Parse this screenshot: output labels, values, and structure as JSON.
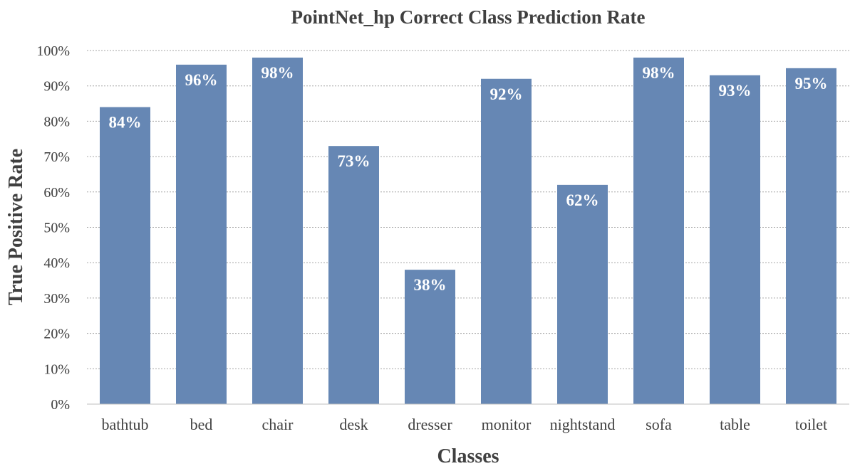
{
  "chart_data": {
    "type": "bar",
    "title": "PointNet_hp Correct Class Prediction Rate",
    "xlabel": "Classes",
    "ylabel": "True Positive Rate",
    "categories": [
      "bathtub",
      "bed",
      "chair",
      "desk",
      "dresser",
      "monitor",
      "nightstand",
      "sofa",
      "table",
      "toilet"
    ],
    "values": [
      84,
      96,
      98,
      73,
      38,
      92,
      62,
      98,
      93,
      95
    ],
    "data_labels": [
      "84%",
      "96%",
      "98%",
      "73%",
      "38%",
      "92%",
      "62%",
      "98%",
      "93%",
      "95%"
    ],
    "ylim": [
      0,
      100
    ],
    "y_ticks": [
      0,
      10,
      20,
      30,
      40,
      50,
      60,
      70,
      80,
      90,
      100
    ],
    "y_tick_labels": [
      "0%",
      "10%",
      "20%",
      "30%",
      "40%",
      "50%",
      "60%",
      "70%",
      "80%",
      "90%",
      "100%"
    ],
    "grid": true,
    "legend": "none",
    "colors": {
      "bar": "#6687b4",
      "text": "#404040",
      "data_label": "#ffffff",
      "grid": "#a6a6a6",
      "axis": "#bfbfbf"
    }
  }
}
